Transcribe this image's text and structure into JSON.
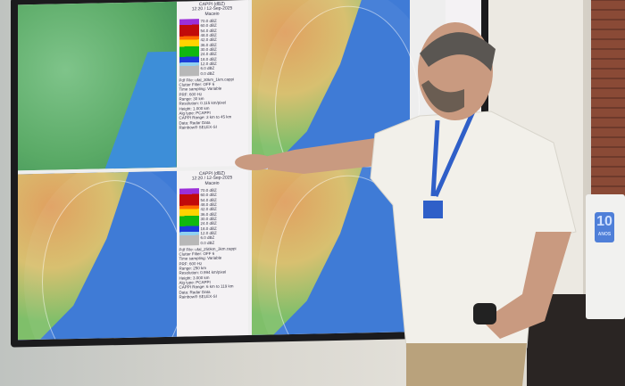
{
  "panels": [
    {
      "title": "CAPPI (dBZ)",
      "time": "12:20 / 12-Sep-2025",
      "site": "Maceio",
      "scale": [
        "70.0 dBZ",
        "60.0 dBZ",
        "54.0 dBZ",
        "48.0 dBZ",
        "42.0 dBZ",
        "36.0 dBZ",
        "30.0 dBZ",
        "24.0 dBZ",
        "18.0 dBZ",
        "12.0 dBZ",
        "6.0 dBZ",
        "0.0 dBZ"
      ],
      "params": [
        "Pdf File: ufal_30km_1km.cappi",
        "Clutter Filter: OFF 6",
        "Time sampling: Variable",
        "PRF: 600 Hz",
        "Range: 30 km",
        "Resolution: 0.115 km/pixel",
        "Height: 1.000 km",
        "Alg type: PCAPPI",
        "CAPPI Range: 3 km to 45 km",
        "Data: Radar Data",
        "Rainbow® SELEX-SI"
      ]
    },
    {
      "title": "CAPPI (dBZ)",
      "time": "12:20 / 12-Sep-2025",
      "site": "Maceio",
      "scale": [
        "70.0 dBZ",
        "60.0 dBZ",
        "54.0 dBZ",
        "48.0 dBZ",
        "42.0 dBZ",
        "36.0 dBZ",
        "30.0 dBZ",
        "24.0 dBZ",
        "18.0 dBZ",
        "12.0 dBZ",
        "6.0 dBZ",
        "0.0 dBZ"
      ],
      "params": [
        "Pdf File: ufal_250km_3km.cappi",
        "Clutter Filter: OFF 6",
        "Time sampling: Variable",
        "PRF: 600 Hz",
        "Range: 250 km",
        "Resolution: 0.994 km/pixel",
        "Height: 3.000 km",
        "Alg type: PCAPPI",
        "CAPPI Range: 6 km to 119 km",
        "Data: Radar Data",
        "Rainbow® SELEX-SI"
      ]
    }
  ],
  "wall_logo": {
    "number": "10",
    "word": "ANOS"
  },
  "colors": {
    "wall": "#d9d6cf",
    "shirt": "#f2f0ea",
    "pants": "#b9a27c",
    "lanyard": "#2f5fc8"
  }
}
